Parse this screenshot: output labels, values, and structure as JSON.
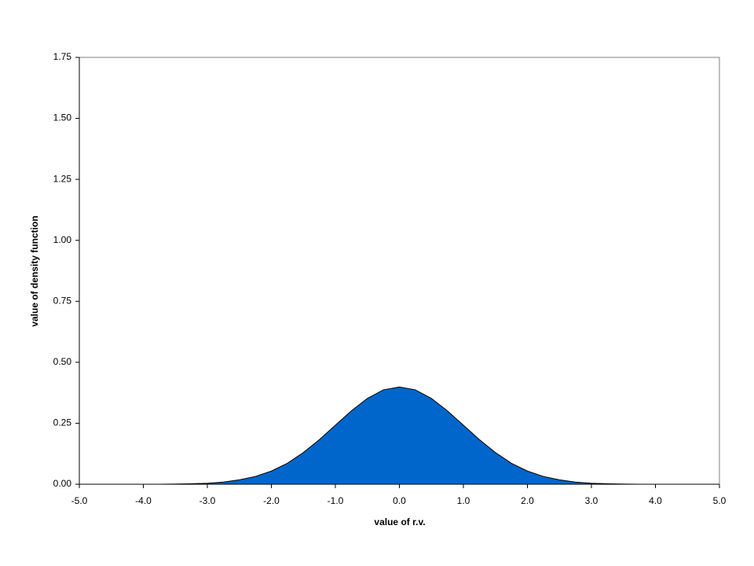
{
  "chart_data": {
    "type": "area",
    "xlabel": "value of r.v.",
    "ylabel": "value of density function",
    "x": [
      -5,
      -4.75,
      -4.5,
      -4.25,
      -4,
      -3.75,
      -3.5,
      -3.25,
      -3,
      -2.75,
      -2.5,
      -2.25,
      -2,
      -1.75,
      -1.5,
      -1.25,
      -1,
      -0.75,
      -0.5,
      -0.25,
      0,
      0.25,
      0.5,
      0.75,
      1,
      1.25,
      1.5,
      1.75,
      2,
      2.25,
      2.5,
      2.75,
      3,
      3.25,
      3.5,
      3.75,
      4,
      4.25,
      4.5,
      4.75,
      5
    ],
    "values": [
      0,
      0,
      0,
      0,
      0,
      0,
      0.001,
      0.002,
      0.004,
      0.009,
      0.018,
      0.032,
      0.054,
      0.086,
      0.13,
      0.183,
      0.242,
      0.301,
      0.352,
      0.387,
      0.399,
      0.387,
      0.352,
      0.301,
      0.242,
      0.183,
      0.13,
      0.086,
      0.054,
      0.032,
      0.018,
      0.009,
      0.004,
      0.002,
      0.001,
      0,
      0,
      0,
      0,
      0,
      0
    ],
    "color": "#0066cc",
    "xlim": [
      -5,
      5
    ],
    "xticks": [
      {
        "value": -5,
        "label": "-5.0"
      },
      {
        "value": -4,
        "label": "-4.0"
      },
      {
        "value": -3,
        "label": "-3.0"
      },
      {
        "value": -2,
        "label": "-2.0"
      },
      {
        "value": -1,
        "label": "-1.0"
      },
      {
        "value": 0,
        "label": "0.0"
      },
      {
        "value": 1,
        "label": "1.0"
      },
      {
        "value": 2,
        "label": "2.0"
      },
      {
        "value": 3,
        "label": "3.0"
      },
      {
        "value": 4,
        "label": "4.0"
      },
      {
        "value": 5,
        "label": "5.0"
      }
    ],
    "ylim": [
      0,
      1.75
    ],
    "yticks": [
      {
        "value": 0,
        "label": "0.00"
      },
      {
        "value": 0.25,
        "label": "0.25"
      },
      {
        "value": 0.5,
        "label": "0.50"
      },
      {
        "value": 0.75,
        "label": "0.75"
      },
      {
        "value": 1,
        "label": "1.00"
      },
      {
        "value": 1.25,
        "label": "1.25"
      },
      {
        "value": 1.5,
        "label": "1.50"
      },
      {
        "value": 1.75,
        "label": "1.75"
      }
    ],
    "grid": false
  }
}
